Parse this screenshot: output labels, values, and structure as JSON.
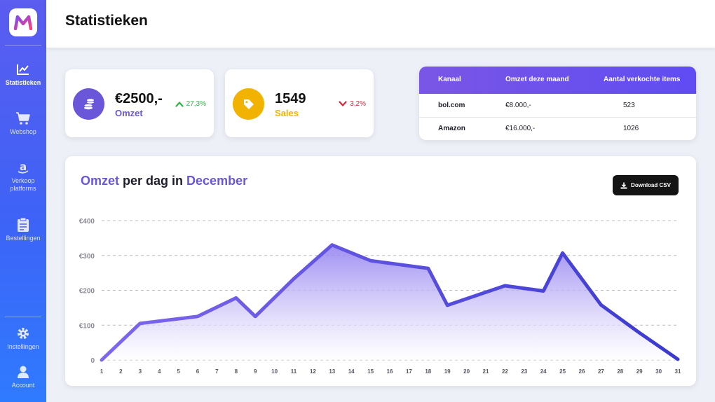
{
  "app": {
    "logo_letter": "M"
  },
  "sidebar": {
    "items": [
      {
        "label": "Statistieken",
        "icon": "chart-line-icon",
        "active": true
      },
      {
        "label": "Webshop",
        "icon": "cart-icon"
      },
      {
        "label": "Verkoop platforms",
        "icon": "amazon-icon"
      },
      {
        "label": "Bestellingen",
        "icon": "clipboard-icon"
      }
    ],
    "bottom_items": [
      {
        "label": "Instellingen",
        "icon": "gear-icon"
      },
      {
        "label": "Account",
        "icon": "user-icon"
      }
    ]
  },
  "header": {
    "title": "Statistieken"
  },
  "kpis": [
    {
      "value": "€2500,-",
      "label": "Omzet",
      "change": "27,3%",
      "direction": "up",
      "icon": "coins-icon",
      "color": "#6a56d8",
      "change_color": "#2fb344"
    },
    {
      "value": "1549",
      "label": "Sales",
      "change": "3,2%",
      "direction": "down",
      "icon": "tag-icon",
      "color": "#f2b300",
      "change_color": "#d1283b"
    }
  ],
  "channels_table": {
    "headers": [
      "Kanaal",
      "Omzet deze maand",
      "Aantal verkochte items"
    ],
    "rows": [
      {
        "channel": "bol.com",
        "revenue": "€8.000,-",
        "items": "523"
      },
      {
        "channel": "Amazon",
        "revenue": "€16.000,-",
        "items": "1026"
      }
    ]
  },
  "chart": {
    "title_parts": [
      "Omzet",
      " per dag in ",
      "December"
    ],
    "download_label": "Download CSV"
  },
  "chart_data": {
    "type": "area",
    "x": [
      1,
      3,
      6,
      8,
      9,
      11,
      13,
      15,
      18,
      19,
      22,
      24,
      25,
      27,
      29,
      31
    ],
    "values": [
      0,
      105,
      125,
      178,
      125,
      233,
      330,
      285,
      263,
      157,
      213,
      198,
      307,
      158,
      78,
      2
    ],
    "xticks": [
      1,
      2,
      3,
      4,
      5,
      6,
      7,
      8,
      9,
      10,
      11,
      12,
      13,
      14,
      15,
      16,
      17,
      18,
      19,
      20,
      21,
      22,
      23,
      24,
      25,
      26,
      27,
      28,
      29,
      30,
      31
    ],
    "xtick_labels": [
      "1",
      "2",
      "3",
      "4",
      "5",
      "6",
      "7",
      "8",
      "9",
      "10",
      "11",
      "12",
      "13",
      "14",
      "15",
      "16",
      "17",
      "18",
      "19",
      "20",
      "21",
      "22",
      "23",
      "24",
      "25",
      "26",
      "27",
      "28",
      "29",
      "30",
      "31"
    ],
    "yticks": [
      0,
      100,
      200,
      300,
      400
    ],
    "ytick_labels": [
      "0",
      "€100",
      "€200",
      "€300",
      "€400"
    ],
    "ylim": [
      0,
      400
    ],
    "xlim": [
      1,
      31
    ],
    "grid": true,
    "colors": {
      "line_start": "#7e67ee",
      "line_end": "#3a3ad0",
      "fill_top": "#8e7cf0",
      "fill_bottom": "#ffffff"
    }
  }
}
